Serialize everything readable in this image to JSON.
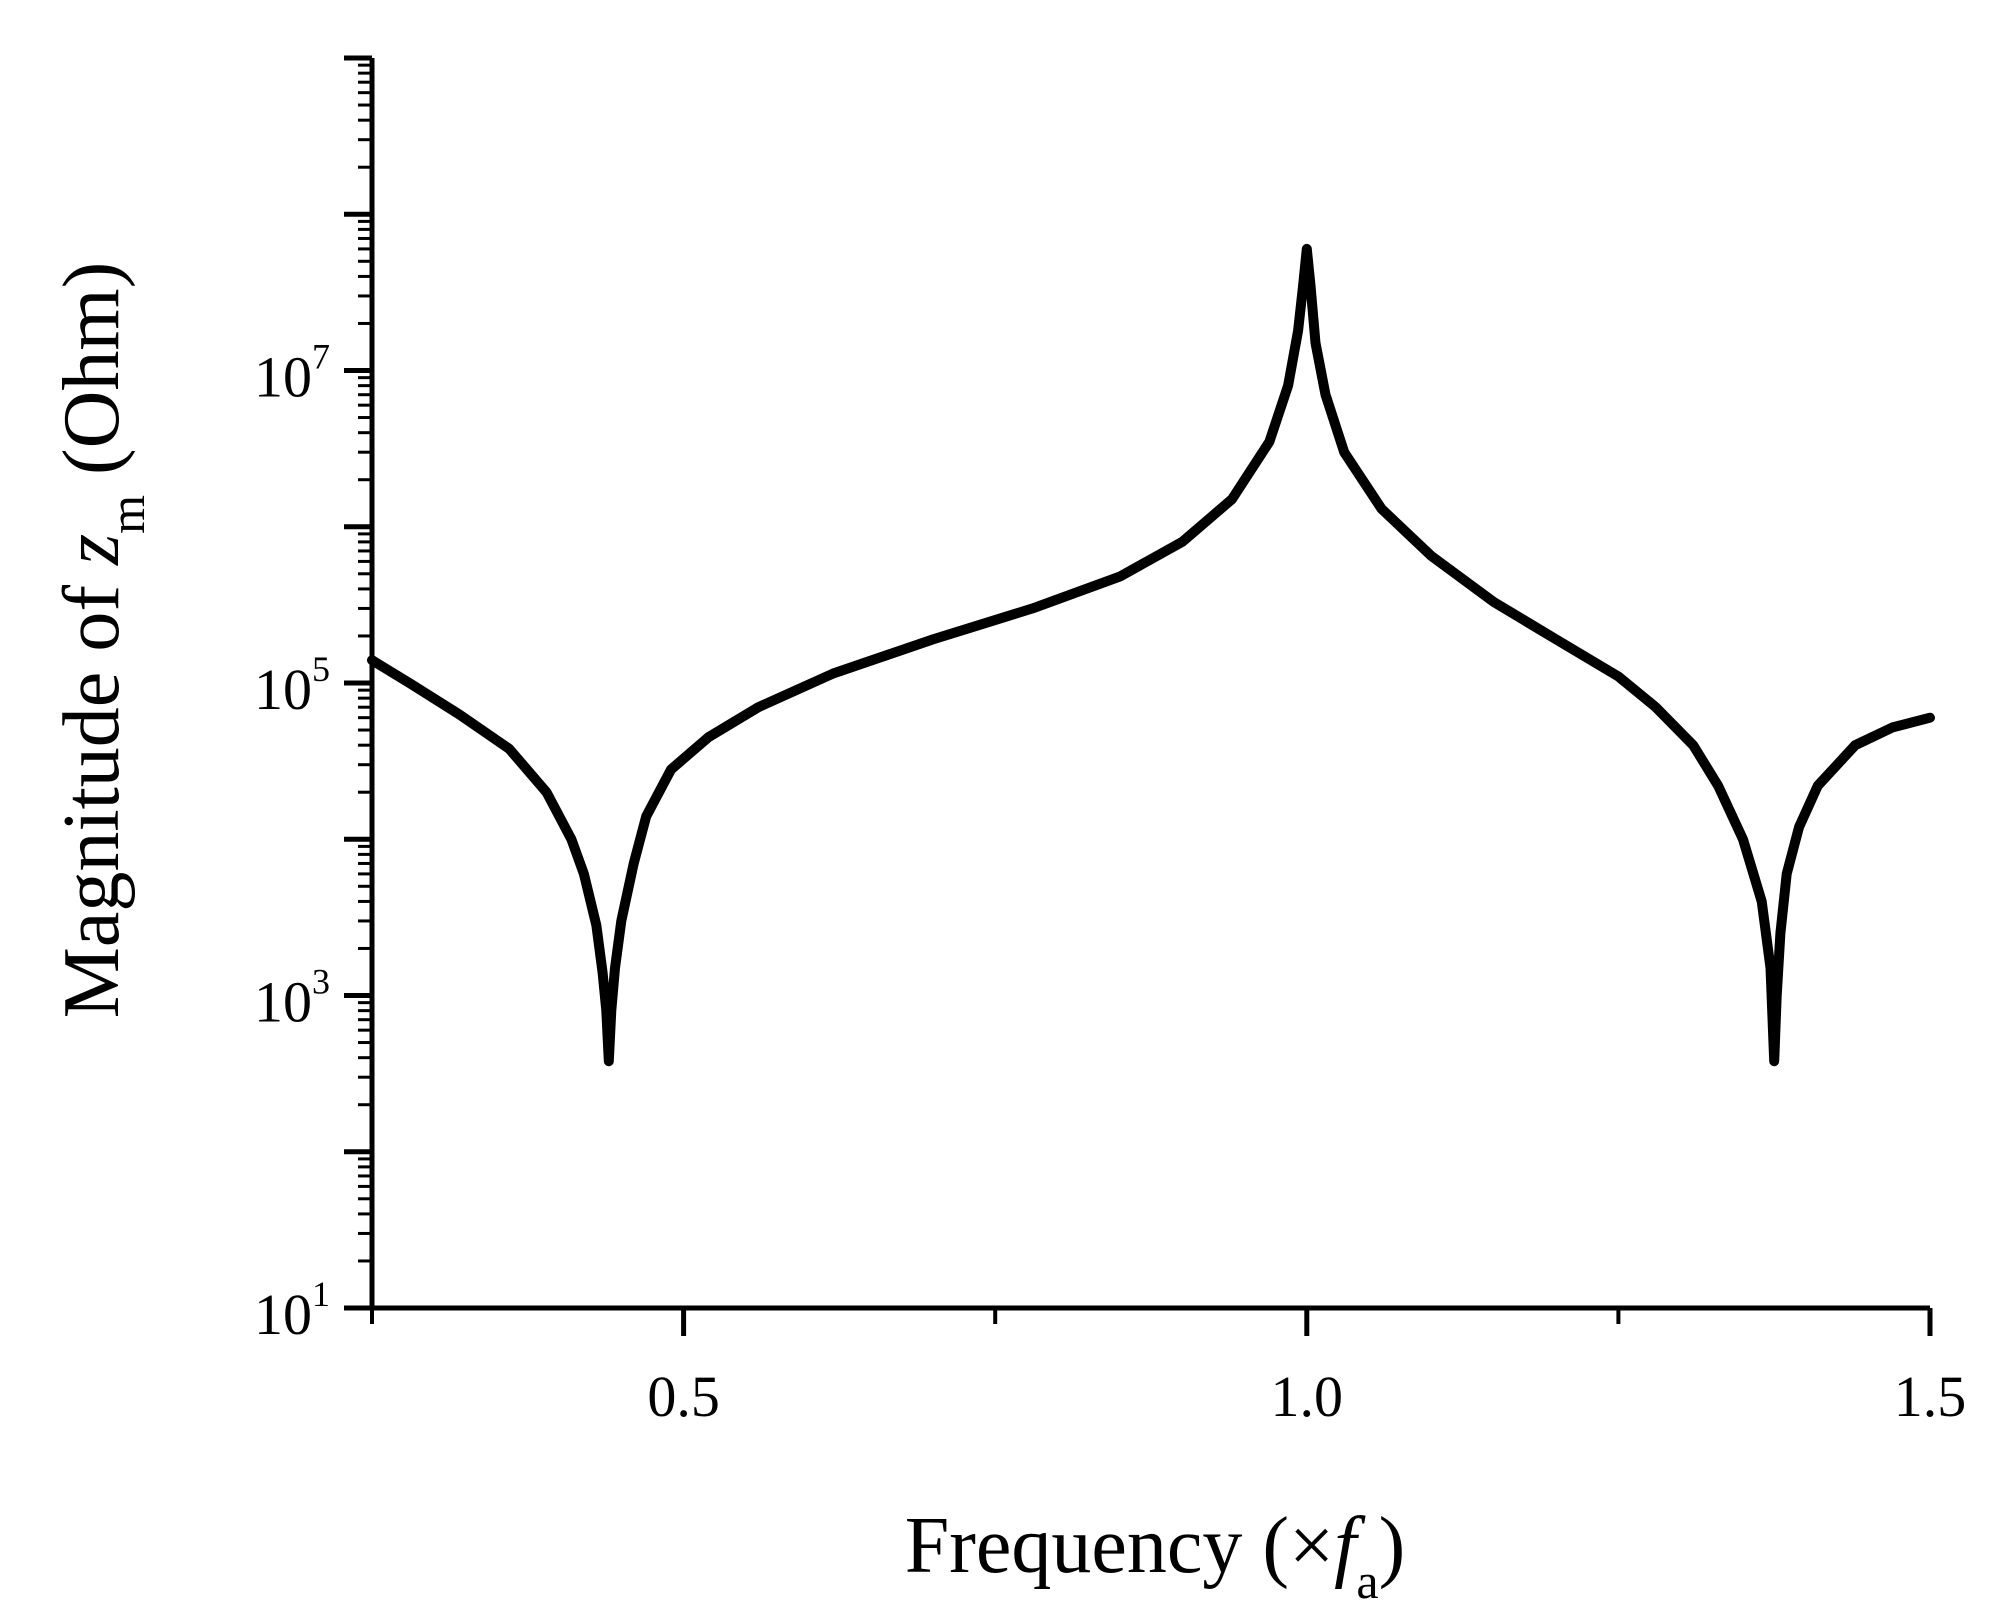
{
  "chart_data": {
    "type": "line",
    "xlabel": {
      "prefix": "Frequency (×",
      "var": "f",
      "sub": "a",
      "suffix": ")"
    },
    "ylabel": {
      "prefix": "Magnitude of ",
      "var": "z",
      "sub": "m",
      "suffix": "(Ohm)"
    },
    "xlim": [
      0.25,
      1.5
    ],
    "ylim": [
      10,
      1000000000
    ],
    "yscale": "log",
    "grid": false,
    "legend": "none",
    "line_color": "#000000",
    "x_ticks": [
      {
        "value": 0.5,
        "label": "0.5"
      },
      {
        "value": 1.0,
        "label": "1.0"
      },
      {
        "value": 1.5,
        "label": "1.5"
      }
    ],
    "x_minor_ticks": [
      0.25,
      0.75,
      1.25
    ],
    "y_ticks": [
      {
        "value": 10,
        "base": "10",
        "exp": "1"
      },
      {
        "value": 1000,
        "base": "10",
        "exp": "3"
      },
      {
        "value": 100000,
        "base": "10",
        "exp": "5"
      },
      {
        "value": 10000000,
        "base": "10",
        "exp": "7"
      }
    ],
    "series": [
      {
        "x": [
          0.25,
          0.28,
          0.32,
          0.36,
          0.39,
          0.41,
          0.42,
          0.43,
          0.435,
          0.438,
          0.44,
          0.442,
          0.445,
          0.45,
          0.46,
          0.47,
          0.49,
          0.52,
          0.56,
          0.62,
          0.7,
          0.78,
          0.85,
          0.9,
          0.94,
          0.97,
          0.985,
          0.993,
          0.997,
          1.0,
          1.003,
          1.007,
          1.015,
          1.03,
          1.06,
          1.1,
          1.15,
          1.2,
          1.25,
          1.28,
          1.31,
          1.33,
          1.35,
          1.365,
          1.372,
          1.375,
          1.377,
          1.38,
          1.385,
          1.395,
          1.41,
          1.44,
          1.47,
          1.5
        ],
        "y": [
          140000,
          100000,
          63000,
          38000,
          20000,
          10000,
          6000,
          2800,
          1400,
          800,
          380,
          800,
          1500,
          3000,
          7000,
          14000,
          28000,
          45000,
          70000,
          115000,
          190000,
          300000,
          480000,
          800000,
          1500000,
          3500000,
          8000000,
          18000000,
          35000000,
          60000000,
          35000000,
          15000000,
          7000000,
          3000000,
          1300000,
          650000,
          330000,
          190000,
          110000,
          70000,
          40000,
          22000,
          10000,
          4000,
          1500,
          380,
          1000,
          2500,
          6000,
          12000,
          22000,
          40000,
          52000,
          60000
        ]
      }
    ]
  }
}
